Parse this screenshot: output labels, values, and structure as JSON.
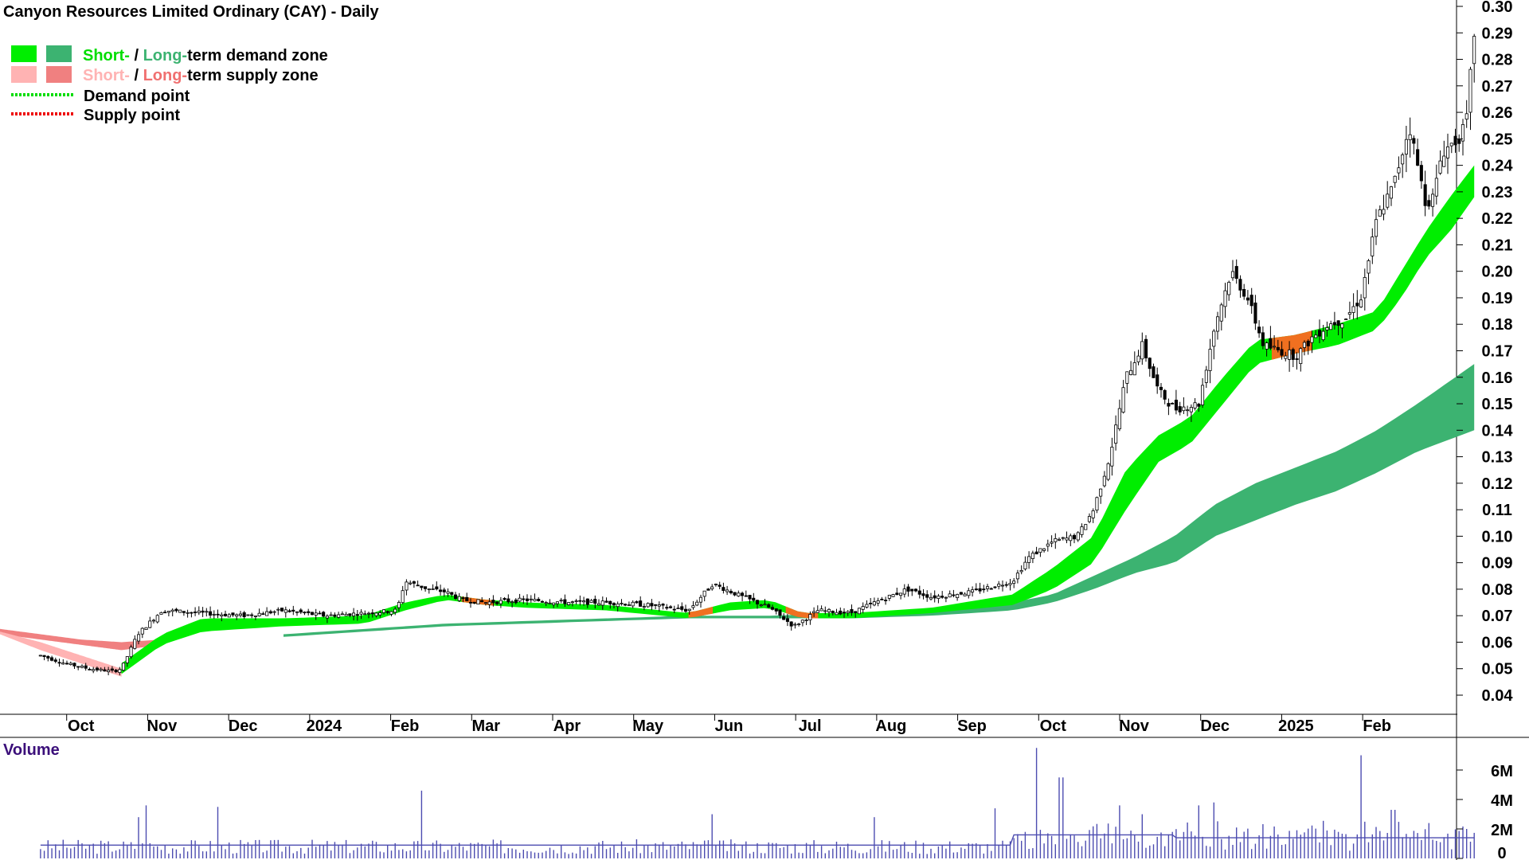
{
  "title": "Canyon Resources Limited Ordinary (CAY) - Daily",
  "legend": {
    "zone_demand": {
      "short": "Short-",
      "sep": " / ",
      "long": "Long-",
      "rest": "term demand zone"
    },
    "zone_supply": {
      "short": "Short-",
      "sep": " / ",
      "long": "Long-",
      "rest": "term supply zone"
    },
    "demand_point": "Demand point",
    "supply_point": "Supply point"
  },
  "colors": {
    "short_demand": "#00ee00",
    "long_demand": "#3cb371",
    "short_supply": "#ffb3b3",
    "long_supply": "#f08080",
    "cross_zone": "#f07020",
    "candle": "#000000",
    "volume": "#4c4cb0"
  },
  "volume_label": "Volume",
  "chart_data": [
    {
      "type": "candlestick",
      "title": "Canyon Resources Limited Ordinary (CAY) - Daily",
      "ylim": [
        0.035,
        0.3
      ],
      "y_ticks": [
        "0.30",
        "0.29",
        "0.28",
        "0.27",
        "0.26",
        "0.25",
        "0.24",
        "0.23",
        "0.22",
        "0.21",
        "0.20",
        "0.19",
        "0.18",
        "0.17",
        "0.16",
        "0.15",
        "0.14",
        "0.13",
        "0.12",
        "0.11",
        "0.10",
        "0.09",
        "0.08",
        "0.07",
        "0.06",
        "0.05",
        "0.04"
      ],
      "x_ticks": [
        "Oct",
        "Nov",
        "Dec",
        "2024",
        "Feb",
        "Mar",
        "Apr",
        "May",
        "Jun",
        "Jul",
        "Aug",
        "Sep",
        "Oct",
        "Nov",
        "Dec",
        "2025",
        "Feb"
      ],
      "tick_months": [
        0.5,
        1.5,
        2.5,
        3.5,
        4.5,
        5.5,
        6.5,
        7.5,
        8.5,
        9.5,
        10.5,
        11.5,
        12.5,
        13.5,
        14.5,
        15.5,
        16.5
      ],
      "months_span": [
        -0.5,
        17.0
      ],
      "price_path": [
        [
          0,
          0.055
        ],
        [
          0.3,
          0.052
        ],
        [
          0.6,
          0.05
        ],
        [
          0.9,
          0.049
        ],
        [
          1.0,
          0.05
        ],
        [
          1.2,
          0.063
        ],
        [
          1.5,
          0.072
        ],
        [
          2,
          0.071
        ],
        [
          2.5,
          0.07
        ],
        [
          3,
          0.072
        ],
        [
          3.5,
          0.07
        ],
        [
          4,
          0.071
        ],
        [
          4.4,
          0.072
        ],
        [
          4.5,
          0.083
        ],
        [
          4.8,
          0.08
        ],
        [
          5,
          0.079
        ],
        [
          5.2,
          0.076
        ],
        [
          5.5,
          0.075
        ],
        [
          6,
          0.076
        ],
        [
          6.5,
          0.075
        ],
        [
          7,
          0.075
        ],
        [
          7.5,
          0.074
        ],
        [
          8,
          0.072
        ],
        [
          8.3,
          0.082
        ],
        [
          8.6,
          0.078
        ],
        [
          9,
          0.073
        ],
        [
          9.3,
          0.066
        ],
        [
          9.6,
          0.072
        ],
        [
          10,
          0.071
        ],
        [
          10.3,
          0.075
        ],
        [
          10.7,
          0.08
        ],
        [
          11,
          0.077
        ],
        [
          11.5,
          0.079
        ],
        [
          12,
          0.083
        ],
        [
          12.2,
          0.092
        ],
        [
          12.5,
          0.098
        ],
        [
          12.8,
          0.1
        ],
        [
          13.0,
          0.11
        ],
        [
          13.2,
          0.13
        ],
        [
          13.4,
          0.16
        ],
        [
          13.6,
          0.172
        ],
        [
          13.8,
          0.155
        ],
        [
          14,
          0.148
        ],
        [
          14.3,
          0.15
        ],
        [
          14.5,
          0.18
        ],
        [
          14.7,
          0.2
        ],
        [
          14.9,
          0.19
        ],
        [
          15.1,
          0.172
        ],
        [
          15.3,
          0.17
        ],
        [
          15.5,
          0.168
        ],
        [
          15.7,
          0.175
        ],
        [
          15.9,
          0.18
        ],
        [
          16.1,
          0.182
        ],
        [
          16.3,
          0.19
        ],
        [
          16.5,
          0.22
        ],
        [
          16.7,
          0.232
        ],
        [
          16.9,
          0.255
        ],
        [
          17.0,
          0.24
        ],
        [
          17.1,
          0.226
        ],
        [
          17.2,
          0.228
        ],
        [
          17.3,
          0.245
        ],
        [
          17.5,
          0.25
        ],
        [
          17.6,
          0.255
        ],
        [
          17.7,
          0.29
        ]
      ],
      "short_demand_upper": [
        [
          1,
          0.052
        ],
        [
          1.5,
          0.063
        ],
        [
          2,
          0.069
        ],
        [
          3,
          0.069
        ],
        [
          4,
          0.07
        ],
        [
          4.5,
          0.075
        ],
        [
          5,
          0.078
        ],
        [
          5.5,
          0.076
        ],
        [
          6,
          0.075
        ],
        [
          7,
          0.074
        ],
        [
          8,
          0.071
        ],
        [
          8.5,
          0.075
        ],
        [
          9,
          0.076
        ],
        [
          9.4,
          0.071
        ],
        [
          10,
          0.071
        ],
        [
          11,
          0.073
        ],
        [
          12,
          0.078
        ],
        [
          12.5,
          0.088
        ],
        [
          13,
          0.1
        ],
        [
          13.4,
          0.125
        ],
        [
          13.8,
          0.138
        ],
        [
          14.2,
          0.145
        ],
        [
          14.6,
          0.16
        ],
        [
          15,
          0.174
        ],
        [
          15.5,
          0.176
        ],
        [
          16,
          0.18
        ],
        [
          16.5,
          0.185
        ],
        [
          16.8,
          0.2
        ],
        [
          17.1,
          0.215
        ],
        [
          17.4,
          0.228
        ],
        [
          17.7,
          0.24
        ]
      ],
      "short_demand_lower": [
        [
          1,
          0.048
        ],
        [
          1.5,
          0.059
        ],
        [
          2,
          0.064
        ],
        [
          3,
          0.066
        ],
        [
          4,
          0.067
        ],
        [
          4.5,
          0.072
        ],
        [
          5,
          0.076
        ],
        [
          5.5,
          0.074
        ],
        [
          6,
          0.073
        ],
        [
          7,
          0.072
        ],
        [
          8,
          0.069
        ],
        [
          8.5,
          0.072
        ],
        [
          9,
          0.073
        ],
        [
          9.4,
          0.069
        ],
        [
          10,
          0.069
        ],
        [
          11,
          0.071
        ],
        [
          12,
          0.074
        ],
        [
          12.5,
          0.08
        ],
        [
          13,
          0.09
        ],
        [
          13.4,
          0.11
        ],
        [
          13.8,
          0.128
        ],
        [
          14.2,
          0.135
        ],
        [
          14.6,
          0.15
        ],
        [
          15,
          0.165
        ],
        [
          15.5,
          0.169
        ],
        [
          16,
          0.172
        ],
        [
          16.5,
          0.178
        ],
        [
          16.8,
          0.19
        ],
        [
          17.1,
          0.205
        ],
        [
          17.4,
          0.215
        ],
        [
          17.7,
          0.228
        ]
      ],
      "long_demand_upper": [
        [
          3,
          0.063
        ],
        [
          4,
          0.065
        ],
        [
          5,
          0.067
        ],
        [
          6,
          0.068
        ],
        [
          7,
          0.069
        ],
        [
          8,
          0.07
        ],
        [
          9,
          0.07
        ],
        [
          10,
          0.071
        ],
        [
          11,
          0.072
        ],
        [
          12,
          0.075
        ],
        [
          12.5,
          0.078
        ],
        [
          13,
          0.085
        ],
        [
          13.5,
          0.092
        ],
        [
          14,
          0.1
        ],
        [
          14.5,
          0.112
        ],
        [
          15,
          0.12
        ],
        [
          15.5,
          0.126
        ],
        [
          16,
          0.132
        ],
        [
          16.5,
          0.14
        ],
        [
          17,
          0.15
        ],
        [
          17.7,
          0.165
        ]
      ],
      "long_demand_lower": [
        [
          3,
          0.062
        ],
        [
          4,
          0.064
        ],
        [
          5,
          0.066
        ],
        [
          6,
          0.067
        ],
        [
          7,
          0.068
        ],
        [
          8,
          0.069
        ],
        [
          9,
          0.069
        ],
        [
          10,
          0.069
        ],
        [
          11,
          0.07
        ],
        [
          12,
          0.072
        ],
        [
          12.5,
          0.075
        ],
        [
          13,
          0.08
        ],
        [
          13.5,
          0.086
        ],
        [
          14,
          0.09
        ],
        [
          14.5,
          0.1
        ],
        [
          15,
          0.106
        ],
        [
          15.5,
          0.112
        ],
        [
          16,
          0.117
        ],
        [
          16.5,
          0.124
        ],
        [
          17,
          0.132
        ],
        [
          17.7,
          0.14
        ]
      ],
      "short_supply_upper": [
        [
          -0.5,
          0.064
        ],
        [
          0,
          0.06
        ],
        [
          0.5,
          0.055
        ],
        [
          1.0,
          0.05
        ]
      ],
      "short_supply_lower": [
        [
          -0.5,
          0.063
        ],
        [
          0,
          0.057
        ],
        [
          0.5,
          0.052
        ],
        [
          1.0,
          0.047
        ]
      ],
      "long_supply_upper": [
        [
          -0.5,
          0.065
        ],
        [
          0,
          0.063
        ],
        [
          0.5,
          0.061
        ],
        [
          1.0,
          0.06
        ],
        [
          1.5,
          0.061
        ]
      ],
      "long_supply_lower": [
        [
          -0.5,
          0.063
        ],
        [
          0,
          0.061
        ],
        [
          0.5,
          0.059
        ],
        [
          1.0,
          0.057
        ],
        [
          1.5,
          0.059
        ]
      ]
    },
    {
      "type": "bar",
      "title": "Volume",
      "ylim": [
        0,
        8000000
      ],
      "y_ticks": [
        "6M",
        "4M",
        "2M",
        "0"
      ],
      "y_tick_values": [
        6000000,
        4000000,
        2000000,
        0
      ],
      "spikes": [
        [
          1.2,
          2.8
        ],
        [
          1.3,
          3.6
        ],
        [
          2.2,
          3.5
        ],
        [
          4.7,
          4.6
        ],
        [
          8.3,
          3.0
        ],
        [
          10.3,
          2.8
        ],
        [
          11.8,
          3.4
        ],
        [
          12.3,
          7.5
        ],
        [
          12.6,
          5.5
        ],
        [
          13.3,
          3.6
        ],
        [
          13.6,
          3.0
        ],
        [
          14.3,
          3.6
        ],
        [
          14.5,
          3.8
        ],
        [
          16.3,
          7.0
        ],
        [
          16.7,
          3.3
        ],
        [
          17.6,
          2.0
        ]
      ],
      "average_level": 1.3
    }
  ]
}
